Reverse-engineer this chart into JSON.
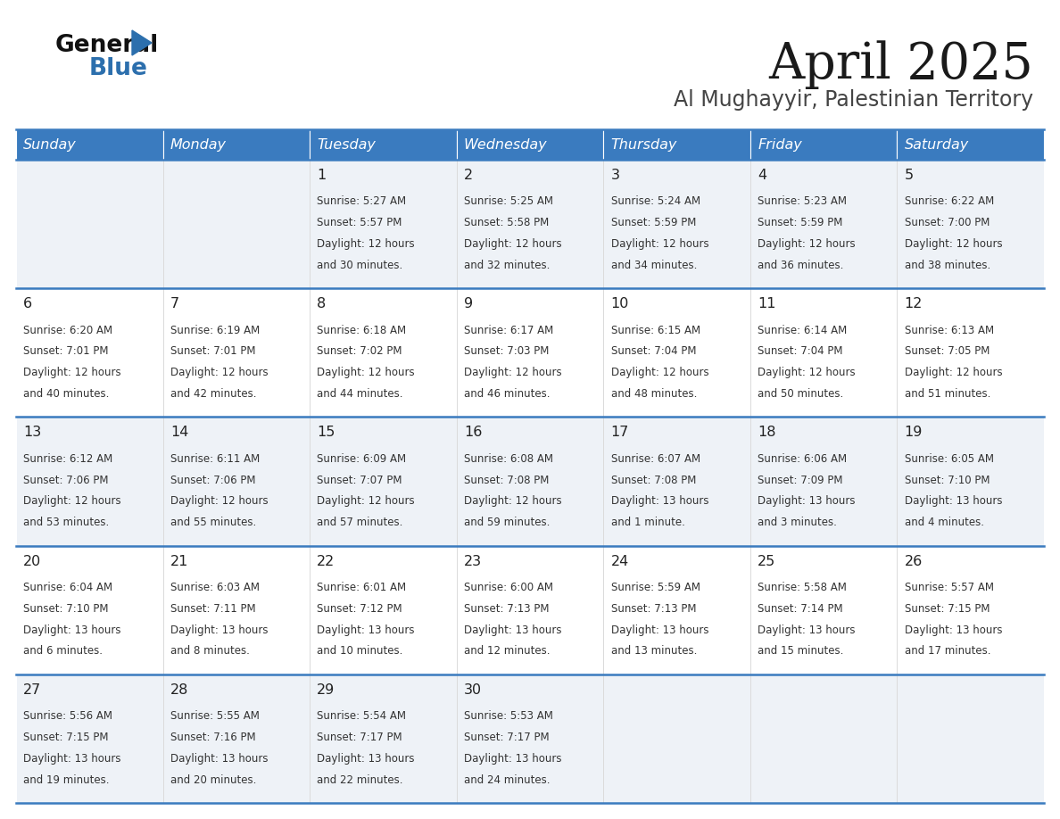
{
  "title": "April 2025",
  "subtitle": "Al Mughayyir, Palestinian Territory",
  "header_bg_color": "#3a7bbf",
  "header_text_color": "#ffffff",
  "day_names": [
    "Sunday",
    "Monday",
    "Tuesday",
    "Wednesday",
    "Thursday",
    "Friday",
    "Saturday"
  ],
  "row_bg_even": "#eef2f7",
  "row_bg_odd": "#ffffff",
  "border_color": "#3a7bbf",
  "text_color": "#333333",
  "days": [
    {
      "day": 1,
      "col": 2,
      "row": 0,
      "sunrise": "5:27 AM",
      "sunset": "5:57 PM",
      "daylight_line1": "Daylight: 12 hours",
      "daylight_line2": "and 30 minutes."
    },
    {
      "day": 2,
      "col": 3,
      "row": 0,
      "sunrise": "5:25 AM",
      "sunset": "5:58 PM",
      "daylight_line1": "Daylight: 12 hours",
      "daylight_line2": "and 32 minutes."
    },
    {
      "day": 3,
      "col": 4,
      "row": 0,
      "sunrise": "5:24 AM",
      "sunset": "5:59 PM",
      "daylight_line1": "Daylight: 12 hours",
      "daylight_line2": "and 34 minutes."
    },
    {
      "day": 4,
      "col": 5,
      "row": 0,
      "sunrise": "5:23 AM",
      "sunset": "5:59 PM",
      "daylight_line1": "Daylight: 12 hours",
      "daylight_line2": "and 36 minutes."
    },
    {
      "day": 5,
      "col": 6,
      "row": 0,
      "sunrise": "6:22 AM",
      "sunset": "7:00 PM",
      "daylight_line1": "Daylight: 12 hours",
      "daylight_line2": "and 38 minutes."
    },
    {
      "day": 6,
      "col": 0,
      "row": 1,
      "sunrise": "6:20 AM",
      "sunset": "7:01 PM",
      "daylight_line1": "Daylight: 12 hours",
      "daylight_line2": "and 40 minutes."
    },
    {
      "day": 7,
      "col": 1,
      "row": 1,
      "sunrise": "6:19 AM",
      "sunset": "7:01 PM",
      "daylight_line1": "Daylight: 12 hours",
      "daylight_line2": "and 42 minutes."
    },
    {
      "day": 8,
      "col": 2,
      "row": 1,
      "sunrise": "6:18 AM",
      "sunset": "7:02 PM",
      "daylight_line1": "Daylight: 12 hours",
      "daylight_line2": "and 44 minutes."
    },
    {
      "day": 9,
      "col": 3,
      "row": 1,
      "sunrise": "6:17 AM",
      "sunset": "7:03 PM",
      "daylight_line1": "Daylight: 12 hours",
      "daylight_line2": "and 46 minutes."
    },
    {
      "day": 10,
      "col": 4,
      "row": 1,
      "sunrise": "6:15 AM",
      "sunset": "7:04 PM",
      "daylight_line1": "Daylight: 12 hours",
      "daylight_line2": "and 48 minutes."
    },
    {
      "day": 11,
      "col": 5,
      "row": 1,
      "sunrise": "6:14 AM",
      "sunset": "7:04 PM",
      "daylight_line1": "Daylight: 12 hours",
      "daylight_line2": "and 50 minutes."
    },
    {
      "day": 12,
      "col": 6,
      "row": 1,
      "sunrise": "6:13 AM",
      "sunset": "7:05 PM",
      "daylight_line1": "Daylight: 12 hours",
      "daylight_line2": "and 51 minutes."
    },
    {
      "day": 13,
      "col": 0,
      "row": 2,
      "sunrise": "6:12 AM",
      "sunset": "7:06 PM",
      "daylight_line1": "Daylight: 12 hours",
      "daylight_line2": "and 53 minutes."
    },
    {
      "day": 14,
      "col": 1,
      "row": 2,
      "sunrise": "6:11 AM",
      "sunset": "7:06 PM",
      "daylight_line1": "Daylight: 12 hours",
      "daylight_line2": "and 55 minutes."
    },
    {
      "day": 15,
      "col": 2,
      "row": 2,
      "sunrise": "6:09 AM",
      "sunset": "7:07 PM",
      "daylight_line1": "Daylight: 12 hours",
      "daylight_line2": "and 57 minutes."
    },
    {
      "day": 16,
      "col": 3,
      "row": 2,
      "sunrise": "6:08 AM",
      "sunset": "7:08 PM",
      "daylight_line1": "Daylight: 12 hours",
      "daylight_line2": "and 59 minutes."
    },
    {
      "day": 17,
      "col": 4,
      "row": 2,
      "sunrise": "6:07 AM",
      "sunset": "7:08 PM",
      "daylight_line1": "Daylight: 13 hours",
      "daylight_line2": "and 1 minute."
    },
    {
      "day": 18,
      "col": 5,
      "row": 2,
      "sunrise": "6:06 AM",
      "sunset": "7:09 PM",
      "daylight_line1": "Daylight: 13 hours",
      "daylight_line2": "and 3 minutes."
    },
    {
      "day": 19,
      "col": 6,
      "row": 2,
      "sunrise": "6:05 AM",
      "sunset": "7:10 PM",
      "daylight_line1": "Daylight: 13 hours",
      "daylight_line2": "and 4 minutes."
    },
    {
      "day": 20,
      "col": 0,
      "row": 3,
      "sunrise": "6:04 AM",
      "sunset": "7:10 PM",
      "daylight_line1": "Daylight: 13 hours",
      "daylight_line2": "and 6 minutes."
    },
    {
      "day": 21,
      "col": 1,
      "row": 3,
      "sunrise": "6:03 AM",
      "sunset": "7:11 PM",
      "daylight_line1": "Daylight: 13 hours",
      "daylight_line2": "and 8 minutes."
    },
    {
      "day": 22,
      "col": 2,
      "row": 3,
      "sunrise": "6:01 AM",
      "sunset": "7:12 PM",
      "daylight_line1": "Daylight: 13 hours",
      "daylight_line2": "and 10 minutes."
    },
    {
      "day": 23,
      "col": 3,
      "row": 3,
      "sunrise": "6:00 AM",
      "sunset": "7:13 PM",
      "daylight_line1": "Daylight: 13 hours",
      "daylight_line2": "and 12 minutes."
    },
    {
      "day": 24,
      "col": 4,
      "row": 3,
      "sunrise": "5:59 AM",
      "sunset": "7:13 PM",
      "daylight_line1": "Daylight: 13 hours",
      "daylight_line2": "and 13 minutes."
    },
    {
      "day": 25,
      "col": 5,
      "row": 3,
      "sunrise": "5:58 AM",
      "sunset": "7:14 PM",
      "daylight_line1": "Daylight: 13 hours",
      "daylight_line2": "and 15 minutes."
    },
    {
      "day": 26,
      "col": 6,
      "row": 3,
      "sunrise": "5:57 AM",
      "sunset": "7:15 PM",
      "daylight_line1": "Daylight: 13 hours",
      "daylight_line2": "and 17 minutes."
    },
    {
      "day": 27,
      "col": 0,
      "row": 4,
      "sunrise": "5:56 AM",
      "sunset": "7:15 PM",
      "daylight_line1": "Daylight: 13 hours",
      "daylight_line2": "and 19 minutes."
    },
    {
      "day": 28,
      "col": 1,
      "row": 4,
      "sunrise": "5:55 AM",
      "sunset": "7:16 PM",
      "daylight_line1": "Daylight: 13 hours",
      "daylight_line2": "and 20 minutes."
    },
    {
      "day": 29,
      "col": 2,
      "row": 4,
      "sunrise": "5:54 AM",
      "sunset": "7:17 PM",
      "daylight_line1": "Daylight: 13 hours",
      "daylight_line2": "and 22 minutes."
    },
    {
      "day": 30,
      "col": 3,
      "row": 4,
      "sunrise": "5:53 AM",
      "sunset": "7:17 PM",
      "daylight_line1": "Daylight: 13 hours",
      "daylight_line2": "and 24 minutes."
    }
  ]
}
